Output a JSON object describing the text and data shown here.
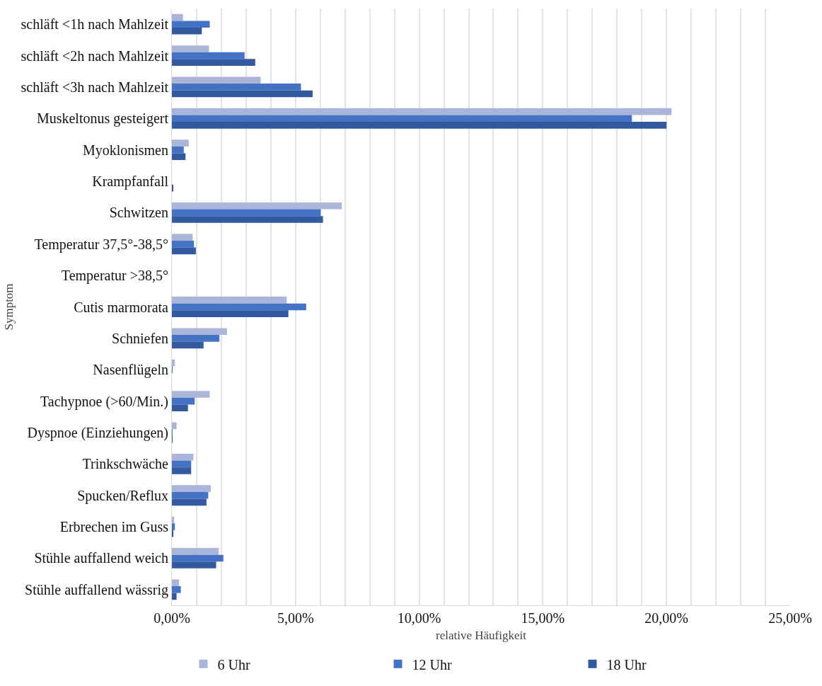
{
  "chart_data": {
    "type": "bar",
    "orientation": "horizontal",
    "xlabel": "relative Häufigkeit",
    "ylabel": "Symptom",
    "categories": [
      "schläft <1h nach Mahlzeit",
      "schläft <2h nach Mahlzeit",
      "schläft <3h nach Mahlzeit",
      "Muskeltonus gesteigert",
      "Myoklonismen",
      "Krampfanfall",
      "Schwitzen",
      "Temperatur 37,5°-38,5°",
      "Temperatur >38,5°",
      "Cutis marmorata",
      "Schniefen",
      "Nasenflügeln",
      "Tachypnoe (>60/Min.)",
      "Dyspnoe (Einziehungen)",
      "Trinkschwäche",
      "Spucken/Reflux",
      "Erbrechen im Guss",
      "Stühle auffallend weich",
      "Stühle auffallend wässrig"
    ],
    "series": [
      {
        "name": "6 Uhr",
        "color": "#a9b6da",
        "values": [
          0.45,
          1.5,
          3.59,
          20.2,
          0.68,
          0,
          6.87,
          0.84,
          0,
          4.64,
          2.23,
          0.12,
          1.53,
          0.19,
          0.87,
          1.57,
          0.09,
          1.89,
          0.29
        ]
      },
      {
        "name": "12 Uhr",
        "color": "#4472c4",
        "values": [
          1.53,
          2.94,
          5.22,
          18.6,
          0.48,
          0,
          6.02,
          0.89,
          0,
          5.43,
          1.92,
          0.02,
          0.92,
          0.02,
          0.78,
          1.47,
          0.12,
          2.08,
          0.36
        ]
      },
      {
        "name": "18 Uhr",
        "color": "#335aa0",
        "values": [
          1.21,
          3.37,
          5.69,
          20.0,
          0.55,
          0.03,
          6.11,
          0.97,
          0,
          4.71,
          1.28,
          0,
          0.65,
          0.02,
          0.78,
          1.4,
          0.06,
          1.79,
          0.19
        ]
      }
    ],
    "xlim": [
      0,
      25
    ],
    "xticks": [
      {
        "value": 0,
        "label": "0,00%"
      },
      {
        "value": 1,
        "label": null
      },
      {
        "value": 2,
        "label": null
      },
      {
        "value": 3,
        "label": null
      },
      {
        "value": 4,
        "label": null
      },
      {
        "value": 5,
        "label": "5,00%"
      },
      {
        "value": 6,
        "label": null
      },
      {
        "value": 7,
        "label": null
      },
      {
        "value": 8,
        "label": null
      },
      {
        "value": 9,
        "label": null
      },
      {
        "value": 10,
        "label": "10,00%"
      },
      {
        "value": 11,
        "label": null
      },
      {
        "value": 12,
        "label": null
      },
      {
        "value": 13,
        "label": null
      },
      {
        "value": 14,
        "label": null
      },
      {
        "value": 15,
        "label": "15,00%"
      },
      {
        "value": 16,
        "label": null
      },
      {
        "value": 17,
        "label": null
      },
      {
        "value": 18,
        "label": null
      },
      {
        "value": 19,
        "label": null
      },
      {
        "value": 20,
        "label": "20,00%"
      },
      {
        "value": 21,
        "label": null
      },
      {
        "value": 22,
        "label": null
      },
      {
        "value": 23,
        "label": null
      },
      {
        "value": 24,
        "label": null
      },
      {
        "value": 25,
        "label": "25,00%"
      }
    ],
    "grid": "x",
    "legend": "bottom"
  }
}
